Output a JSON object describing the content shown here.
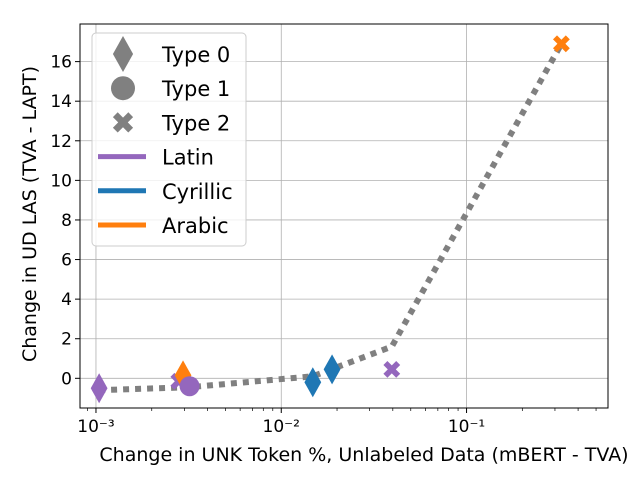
{
  "chart_data": {
    "type": "scatter",
    "xlabel": "Change in UNK Token %, Unlabeled Data (mBERT - TVA)",
    "ylabel": "Change in UD LAS (TVA - LAPT)",
    "xscale": "log",
    "xlim": [
      0.00082,
      0.58
    ],
    "ylim": [
      -1.5,
      17.9
    ],
    "x_tick_values": [
      0.001,
      0.01,
      0.1
    ],
    "x_tick_labels": [
      "10⁻³",
      "10⁻²",
      "10⁻¹"
    ],
    "y_ticks": [
      0,
      2,
      4,
      6,
      8,
      10,
      12,
      14,
      16
    ],
    "grid": true,
    "legend_position": "upper-left",
    "colors": {
      "Latin": "#9467bd",
      "Cyrillic": "#1f77b4",
      "Arabic": "#ff7f0e",
      "marker_legend": "#808080",
      "trend": "#808080"
    },
    "legend": {
      "markers": [
        {
          "label": "Type 0",
          "marker": "diamond"
        },
        {
          "label": "Type 1",
          "marker": "circle"
        },
        {
          "label": "Type 2",
          "marker": "x"
        }
      ],
      "scripts": [
        {
          "label": "Latin"
        },
        {
          "label": "Cyrillic"
        },
        {
          "label": "Arabic"
        }
      ]
    },
    "points": [
      {
        "x": 0.00104,
        "y": -0.5,
        "type": 0,
        "script": "Latin"
      },
      {
        "x": 0.0028,
        "y": -0.15,
        "type": 2,
        "script": "Latin"
      },
      {
        "x": 0.00295,
        "y": 0.15,
        "type": 0,
        "script": "Arabic"
      },
      {
        "x": 0.0032,
        "y": -0.4,
        "type": 1,
        "script": "Latin"
      },
      {
        "x": 0.0148,
        "y": -0.2,
        "type": 0,
        "script": "Cyrillic"
      },
      {
        "x": 0.0188,
        "y": 0.45,
        "type": 0,
        "script": "Cyrillic"
      },
      {
        "x": 0.0395,
        "y": 0.45,
        "type": 2,
        "script": "Latin"
      },
      {
        "x": 0.325,
        "y": 16.9,
        "type": 2,
        "script": "Arabic"
      }
    ],
    "trend_line": {
      "x": [
        0.00104,
        0.0032,
        0.0148,
        0.0395,
        0.325
      ],
      "y": [
        -0.6,
        -0.45,
        0.1,
        1.6,
        16.9
      ]
    }
  }
}
